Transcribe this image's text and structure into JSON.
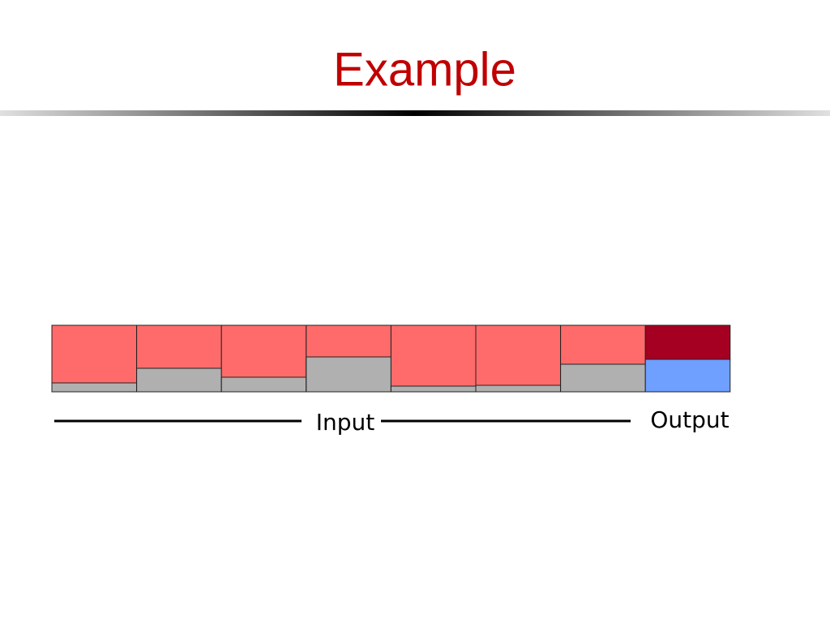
{
  "title": "Example",
  "labels": {
    "input": "Input",
    "output": "Output"
  }
}
